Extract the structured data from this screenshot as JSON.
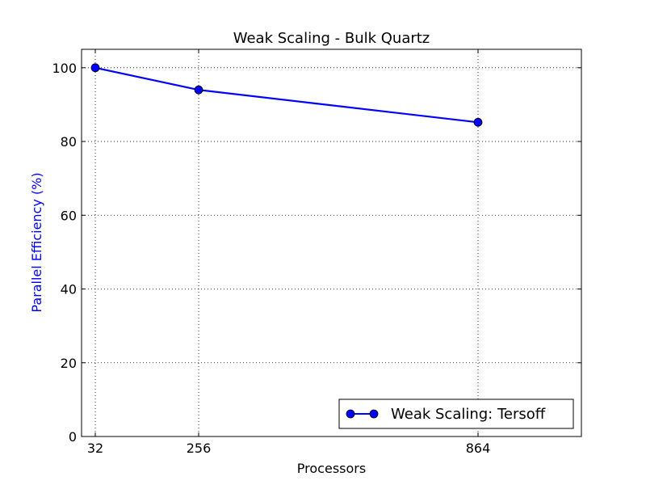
{
  "chart_data": {
    "type": "line",
    "title": "Weak Scaling - Bulk Quartz",
    "xlabel": "Processors",
    "ylabel": "Parallel Efficiency (%)",
    "x_ticks": [
      "32",
      "256",
      "864"
    ],
    "y_ticks": [
      "0",
      "20",
      "40",
      "60",
      "80",
      "100"
    ],
    "xlim": [
      0,
      1
    ],
    "ylim": [
      0,
      105
    ],
    "grid": true,
    "legend_position": "lower-right",
    "series": [
      {
        "name": "Weak Scaling: Tersoff",
        "color": "#0000ff",
        "marker": "circle",
        "x": [
          "32",
          "256",
          "864"
        ],
        "values": [
          100,
          94,
          85.2
        ]
      }
    ],
    "colors": {
      "ylabel": "#0000ff",
      "axis": "#000000",
      "grid": "#000000"
    }
  }
}
